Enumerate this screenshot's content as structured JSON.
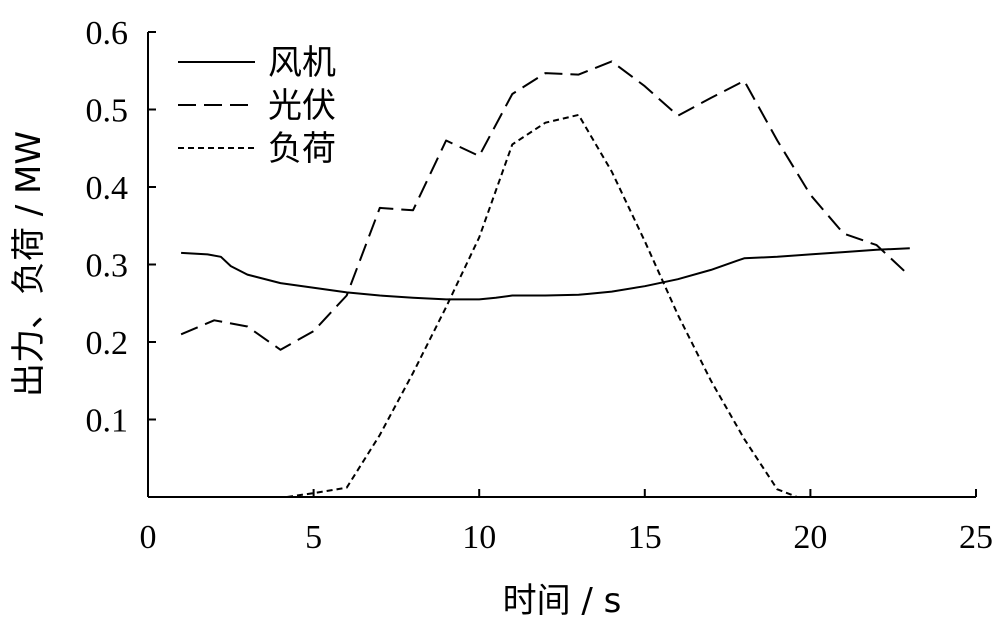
{
  "chart_data": {
    "type": "line",
    "xlabel": "时间 / s",
    "ylabel": "出力、负荷 / MW",
    "xlim": [
      0,
      25
    ],
    "ylim": [
      0,
      0.6
    ],
    "x_ticks": [
      0,
      5,
      10,
      15,
      20,
      25
    ],
    "y_ticks": [
      0.1,
      0.2,
      0.3,
      0.4,
      0.5,
      0.6
    ],
    "legend_position": "top-left",
    "series": [
      {
        "name": "风机",
        "style": "solid",
        "color": "#000000",
        "x": [
          1,
          1.8,
          2.2,
          2.5,
          3,
          4,
          5,
          6,
          7,
          8,
          9,
          10,
          10.5,
          11,
          12,
          13,
          13.3,
          14,
          15,
          16,
          17,
          17.8,
          18,
          18.5,
          19,
          20,
          21,
          22,
          23
        ],
        "y": [
          0.315,
          0.313,
          0.31,
          0.298,
          0.287,
          0.276,
          0.27,
          0.264,
          0.26,
          0.257,
          0.255,
          0.255,
          0.257,
          0.26,
          0.26,
          0.261,
          0.262,
          0.265,
          0.272,
          0.281,
          0.293,
          0.305,
          0.308,
          0.309,
          0.31,
          0.313,
          0.316,
          0.319,
          0.321
        ]
      },
      {
        "name": "光伏",
        "style": "dashed",
        "color": "#000000",
        "x": [
          1,
          2,
          3,
          4,
          5,
          6,
          7,
          8,
          9,
          10,
          11,
          12,
          13,
          14,
          15,
          16,
          17,
          18,
          19,
          20,
          21,
          22,
          23
        ],
        "y": [
          0.21,
          0.228,
          0.22,
          0.19,
          0.214,
          0.26,
          0.373,
          0.37,
          0.46,
          0.44,
          0.52,
          0.547,
          0.545,
          0.562,
          0.53,
          0.492,
          0.515,
          0.537,
          0.46,
          0.39,
          0.34,
          0.325,
          0.285
        ]
      },
      {
        "name": "负荷",
        "style": "dotted",
        "color": "#000000",
        "x": [
          4.2,
          5,
          6,
          7,
          8,
          9,
          10,
          11,
          12,
          13,
          14,
          15,
          16,
          17,
          18,
          19,
          19.6,
          20,
          21,
          22,
          23
        ],
        "y": [
          0,
          0.005,
          0.012,
          0.08,
          0.16,
          0.245,
          0.335,
          0.455,
          0.483,
          0.493,
          0.42,
          0.33,
          0.235,
          0.15,
          0.075,
          0.01,
          0,
          0,
          0,
          0,
          0
        ]
      }
    ]
  }
}
